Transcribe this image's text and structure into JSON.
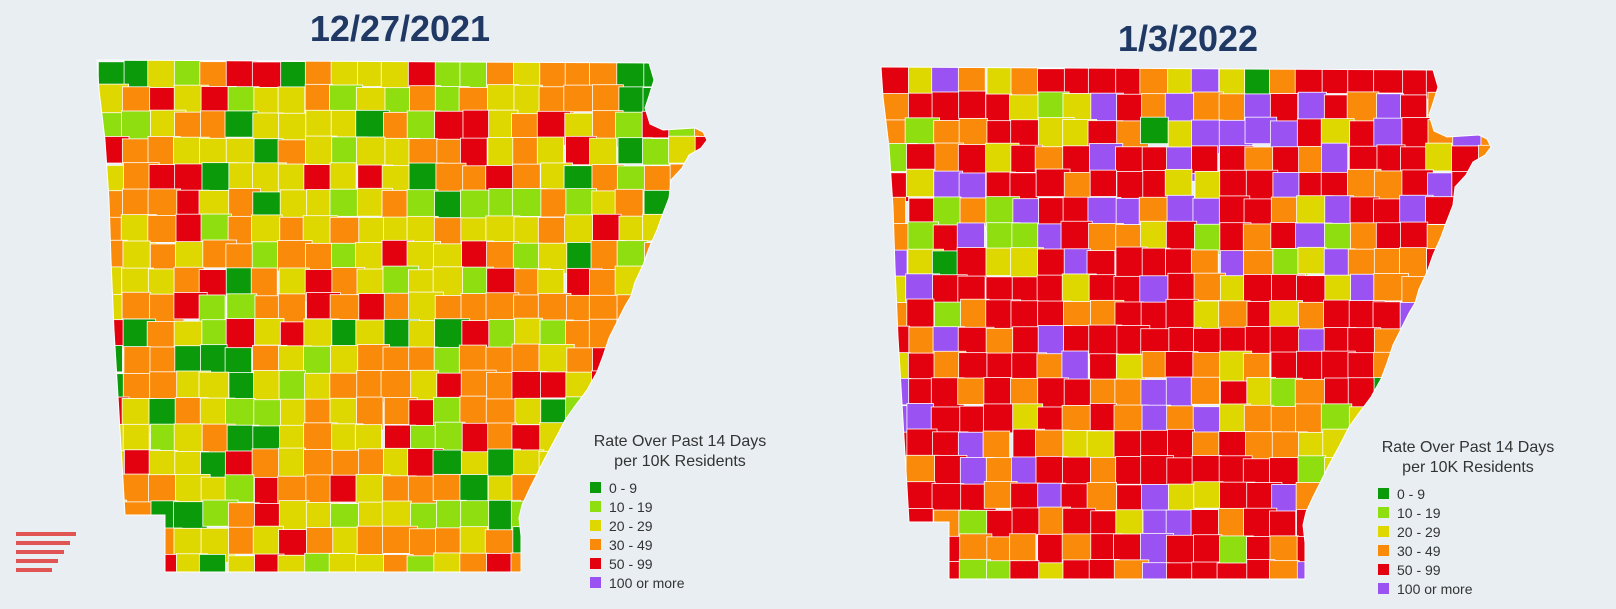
{
  "maps": [
    {
      "date": "12/27/2021",
      "legend": {
        "title_line1": "Rate Over Past 14 Days",
        "title_line2": "per 10K Residents"
      },
      "distribution": [
        0.1,
        0.16,
        0.29,
        0.34,
        0.11,
        0.0
      ]
    },
    {
      "date": "1/3/2022",
      "legend": {
        "title_line1": "Rate Over Past 14 Days",
        "title_line2": "per 10K Residents"
      },
      "distribution": [
        0.01,
        0.05,
        0.12,
        0.22,
        0.45,
        0.15
      ]
    }
  ],
  "legend_items": [
    {
      "label": "0 - 9",
      "color": "#0a9a0a"
    },
    {
      "label": "10 - 19",
      "color": "#8ede10"
    },
    {
      "label": "20 - 29",
      "color": "#dfd800"
    },
    {
      "label": "30 - 49",
      "color": "#f98a0a"
    },
    {
      "label": "50 - 99",
      "color": "#e3000f"
    },
    {
      "label": "100 or more",
      "color": "#9a52f2"
    }
  ],
  "menu_icon": "menu-bars-icon"
}
